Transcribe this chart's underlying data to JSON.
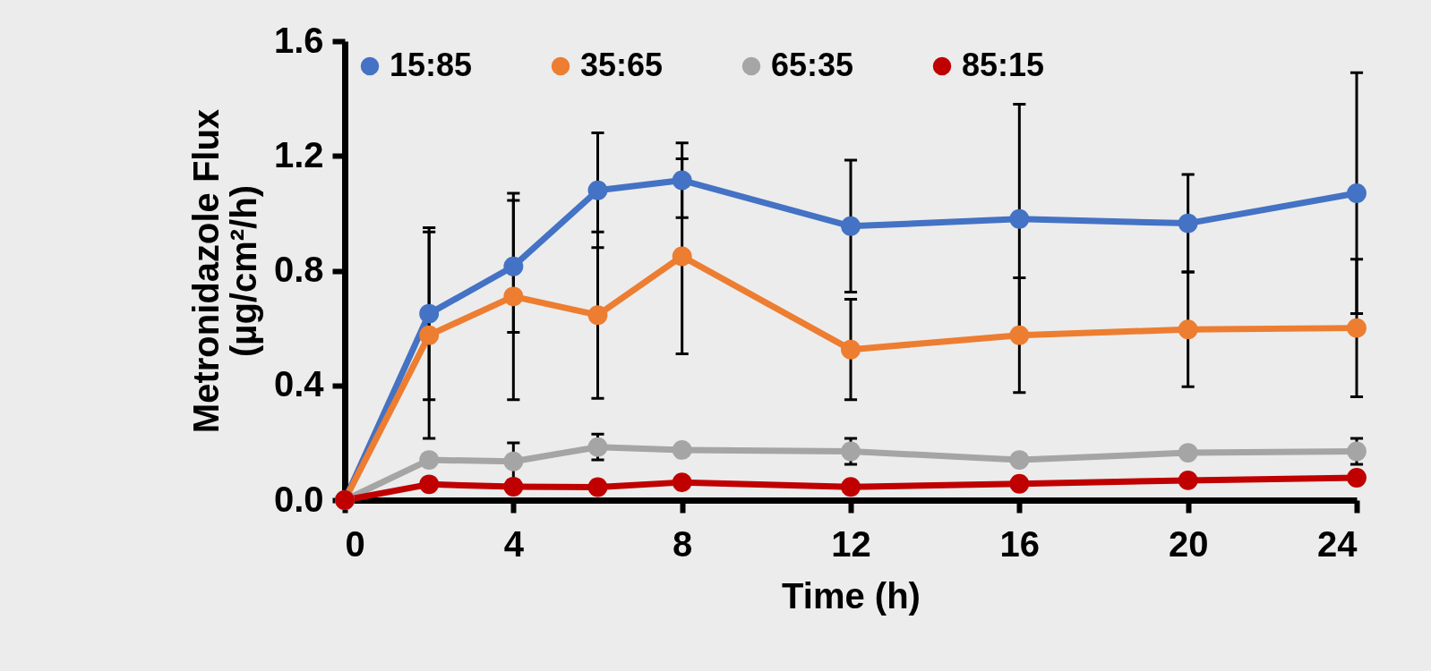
{
  "chart_data": {
    "type": "line",
    "xlabel": "Time (h)",
    "ylabel": "Metronidazole Flux\n(µg/cm²/h)",
    "x": [
      0,
      2,
      4,
      6,
      8,
      12,
      16,
      20,
      24
    ],
    "xlim": [
      0,
      24
    ],
    "xticks": [
      0,
      4,
      8,
      12,
      16,
      20,
      24
    ],
    "ylim": [
      0,
      1.6
    ],
    "yticks": [
      {
        "value": 0,
        "label": "0.0"
      },
      {
        "value": 0.4,
        "label": "0.4"
      },
      {
        "value": 0.8,
        "label": "0.8"
      },
      {
        "value": 1.2,
        "label": "1.2"
      },
      {
        "value": 1.6,
        "label": "1.6"
      }
    ],
    "grid": false,
    "legend": "top left",
    "marker": "circle",
    "line_style": "solid",
    "series": [
      {
        "name": "15:85",
        "color": "#4472c4",
        "values": [
          0,
          0.65,
          0.815,
          1.08,
          1.115,
          0.955,
          0.98,
          0.965,
          1.07
        ],
        "errors": [
          null,
          0.3,
          0.23,
          0.2,
          0.13,
          0.23,
          0.4,
          0.17,
          0.42
        ]
      },
      {
        "name": "35:65",
        "color": "#ed7d31",
        "values": [
          0,
          0.575,
          0.71,
          0.645,
          0.85,
          0.525,
          0.575,
          0.595,
          0.6
        ],
        "errors": [
          null,
          0.36,
          0.36,
          0.29,
          0.34,
          0.175,
          0.2,
          0.2,
          0.24
        ]
      },
      {
        "name": "65:35",
        "color": "#a5a5a5",
        "values": [
          0,
          0.14,
          0.135,
          0.185,
          0.175,
          0.17,
          0.14,
          0.165,
          0.17
        ],
        "errors": [
          null,
          null,
          0.065,
          0.045,
          null,
          0.045,
          null,
          null,
          0.045
        ]
      },
      {
        "name": "85:15",
        "color": "#c00000",
        "values": [
          0,
          0.055,
          0.047,
          0.045,
          0.062,
          0.046,
          0.057,
          0.069,
          0.078
        ]
      }
    ]
  }
}
